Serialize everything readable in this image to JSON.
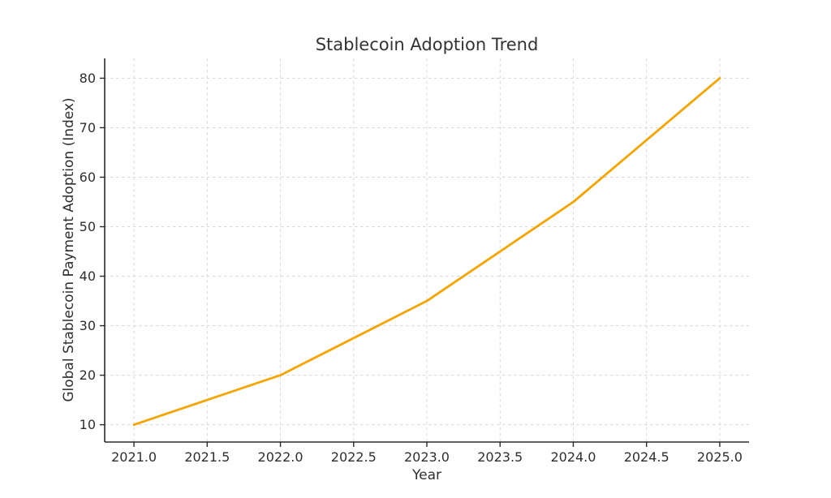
{
  "figure": {
    "background": "#ffffff"
  },
  "chart_data": {
    "type": "line",
    "title": "Stablecoin Adoption Trend",
    "xlabel": "Year",
    "ylabel": "Global Stablecoin Payment Adoption (Index)",
    "x": [
      2021,
      2022,
      2023,
      2024,
      2025
    ],
    "y": [
      10,
      20,
      35,
      55,
      80
    ],
    "xlim": [
      2020.8,
      2025.2
    ],
    "ylim": [
      6.5,
      84
    ],
    "xticks": [
      2021.0,
      2021.5,
      2022.0,
      2022.5,
      2023.0,
      2023.5,
      2024.0,
      2024.5,
      2025.0
    ],
    "xtick_labels": [
      "2021.0",
      "2021.5",
      "2022.0",
      "2022.5",
      "2023.0",
      "2023.5",
      "2024.0",
      "2024.5",
      "2025.0"
    ],
    "yticks": [
      10,
      20,
      30,
      40,
      50,
      60,
      70,
      80
    ],
    "ytick_labels": [
      "10",
      "20",
      "30",
      "40",
      "50",
      "60",
      "70",
      "80"
    ],
    "grid": true,
    "grid_style": "dashed",
    "legend": false,
    "markers": false,
    "colors": {
      "line": "#F5A400",
      "grid": "#D8D8D8",
      "spine": "#2A2A2A",
      "tick": "#2A2A2A",
      "text": "#2E2E2E"
    },
    "line_width": 2.8
  }
}
